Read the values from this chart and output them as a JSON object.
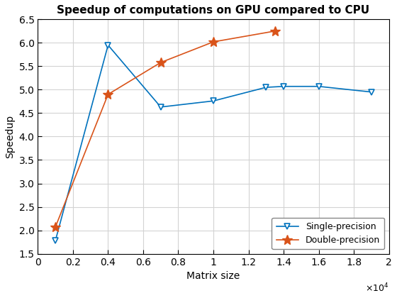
{
  "title": "Speedup of computations on GPU compared to CPU",
  "xlabel": "Matrix size",
  "ylabel": "Speedup",
  "xlim": [
    0,
    20000
  ],
  "ylim": [
    1.5,
    6.5
  ],
  "xticks": [
    0,
    2000,
    4000,
    6000,
    8000,
    10000,
    12000,
    14000,
    16000,
    18000,
    20000
  ],
  "xticklabels": [
    "0",
    "0.2",
    "0.4",
    "0.6",
    "0.8",
    "1",
    "1.2",
    "1.4",
    "1.6",
    "1.8",
    "2"
  ],
  "yticks": [
    1.5,
    2.0,
    2.5,
    3.0,
    3.5,
    4.0,
    4.5,
    5.0,
    5.5,
    6.0,
    6.5
  ],
  "single_x": [
    1000,
    4000,
    7000,
    10000,
    13000,
    14000,
    16000,
    19000
  ],
  "single_y": [
    1.78,
    5.95,
    4.63,
    4.76,
    5.05,
    5.07,
    5.07,
    4.95
  ],
  "double_x": [
    1000,
    4000,
    7000,
    10000,
    13500
  ],
  "double_y": [
    2.07,
    4.9,
    5.58,
    6.02,
    6.25
  ],
  "single_color": "#0072BD",
  "double_color": "#D95319",
  "single_label": "Single-precision",
  "double_label": "Double-precision",
  "legend_loc": "lower right",
  "title_fontsize": 11,
  "label_fontsize": 10,
  "tick_fontsize": 10,
  "legend_fontsize": 9,
  "background_color": "#ffffff",
  "grid_color": "#d3d3d3"
}
